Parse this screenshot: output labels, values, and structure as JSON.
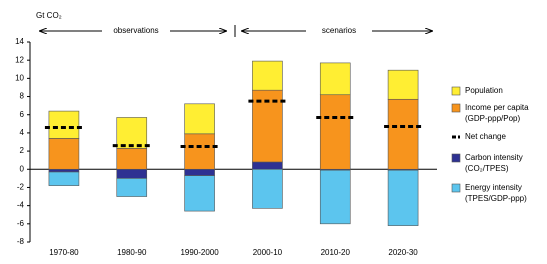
{
  "chart_data": {
    "type": "bar",
    "y_label": "Gt CO₂",
    "annotations": [
      "observations",
      "scenarios"
    ],
    "categories": [
      "1970-80",
      "1980-90",
      "1990-2000",
      "2000-10",
      "2010-20",
      "2020-30"
    ],
    "series": [
      {
        "name": "Population",
        "color": "#ffee33",
        "values": [
          3.0,
          3.4,
          3.3,
          3.2,
          3.5,
          3.2
        ]
      },
      {
        "name": "Income per capita",
        "sublabel": "(GDP-ppp/Pop)",
        "color": "#f7941d",
        "values": [
          3.4,
          2.3,
          3.9,
          7.9,
          8.2,
          7.7
        ]
      },
      {
        "name": "Carbon intensity",
        "sublabel": "(CO₂/TPES)",
        "color": "#2e3192",
        "values": [
          -0.3,
          -1.0,
          -0.7,
          0.8,
          -0.1,
          -0.1
        ]
      },
      {
        "name": "Energy intensity",
        "sublabel": "(TPES/GDP-ppp)",
        "color": "#5cc5ee",
        "values": [
          -1.5,
          -2.0,
          -3.9,
          -4.3,
          -5.9,
          -6.1
        ]
      }
    ],
    "net_change": {
      "name": "Net change",
      "color": "#000000",
      "values": [
        4.6,
        2.6,
        2.5,
        7.5,
        5.7,
        4.7
      ]
    },
    "ylim": [
      -8,
      14
    ],
    "yticks": [
      -8,
      -6,
      -4,
      -2,
      0,
      2,
      4,
      6,
      8,
      10,
      12,
      14
    ]
  }
}
